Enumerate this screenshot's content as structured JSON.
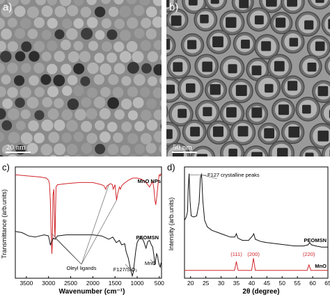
{
  "panels": {
    "a": {
      "letter": "a)",
      "scale_label": "20 nm"
    },
    "b": {
      "letter": "b)",
      "scale_label": "50 nm"
    }
  },
  "chart_data": [
    {
      "id": "c",
      "type": "line",
      "panel_letter": "c)",
      "xlabel": "Wavenumber (cm⁻¹)",
      "ylabel": "Transmittance (arb.units)",
      "x_ticks": [
        3500,
        3000,
        2500,
        2000,
        1500,
        1000,
        500
      ],
      "xlim": [
        3750,
        450
      ],
      "x_reversed": true,
      "annotations": [
        "Oleyl ligands",
        "F127/SiO₂",
        "MnO"
      ],
      "series": [
        {
          "name": "MnO NPs",
          "color": "#d0262b",
          "x": [
            3750,
            3500,
            3200,
            3050,
            3000,
            2980,
            2960,
            2940,
            2925,
            2915,
            2900,
            2880,
            2870,
            2860,
            2853,
            2845,
            2830,
            2800,
            2600,
            2300,
            2000,
            1800,
            1750,
            1711,
            1680,
            1640,
            1600,
            1560,
            1540,
            1500,
            1465,
            1440,
            1400,
            1377,
            1350,
            1300,
            1200,
            1100,
            1000,
            900,
            800,
            720,
            680,
            650,
            620,
            600,
            580,
            560,
            540,
            520,
            500,
            480,
            460
          ],
          "y": [
            0.93,
            0.92,
            0.91,
            0.9,
            0.88,
            0.85,
            0.7,
            0.4,
            0.22,
            0.3,
            0.75,
            0.8,
            0.6,
            0.42,
            0.36,
            0.55,
            0.82,
            0.84,
            0.85,
            0.86,
            0.86,
            0.84,
            0.83,
            0.8,
            0.83,
            0.84,
            0.85,
            0.84,
            0.8,
            0.84,
            0.7,
            0.76,
            0.82,
            0.8,
            0.83,
            0.85,
            0.88,
            0.9,
            0.9,
            0.89,
            0.86,
            0.82,
            0.85,
            0.87,
            0.8,
            0.7,
            0.66,
            0.72,
            0.8,
            0.88,
            0.93,
            0.92,
            0.94
          ]
        },
        {
          "name": "PEOMSN",
          "color": "#111111",
          "x": [
            3750,
            3600,
            3450,
            3300,
            3100,
            3000,
            2960,
            2925,
            2890,
            2850,
            2800,
            2600,
            2400,
            2200,
            2000,
            1800,
            1640,
            1550,
            1470,
            1400,
            1350,
            1280,
            1250,
            1200,
            1150,
            1110,
            1090,
            1060,
            1030,
            1000,
            960,
            900,
            850,
            800,
            780,
            760,
            720,
            700,
            680,
            650,
            620,
            600,
            580,
            560,
            540,
            520,
            500,
            480,
            460
          ],
          "y": [
            0.42,
            0.41,
            0.38,
            0.37,
            0.39,
            0.38,
            0.3,
            0.33,
            0.36,
            0.35,
            0.38,
            0.39,
            0.39,
            0.39,
            0.39,
            0.38,
            0.35,
            0.37,
            0.32,
            0.34,
            0.3,
            0.31,
            0.24,
            0.18,
            0.08,
            0.02,
            0.05,
            0.15,
            0.25,
            0.32,
            0.35,
            0.37,
            0.33,
            0.27,
            0.3,
            0.33,
            0.34,
            0.32,
            0.3,
            0.28,
            0.2,
            0.12,
            0.17,
            0.22,
            0.2,
            0.15,
            0.12,
            0.1,
            0.14
          ]
        }
      ]
    },
    {
      "id": "d",
      "type": "line",
      "panel_letter": "d)",
      "xlabel": "2θ (degree)",
      "ylabel": "Intensity (arb.units)",
      "x_ticks": [
        20,
        25,
        30,
        35,
        40,
        45,
        50,
        55,
        60,
        65
      ],
      "xlim": [
        18,
        65
      ],
      "annotations": [
        "F127 crystalline peaks"
      ],
      "peak_labels": [
        {
          "label": "(111)",
          "x": 35.0
        },
        {
          "label": "(200)",
          "x": 40.6
        },
        {
          "label": "(220)",
          "x": 58.8
        }
      ],
      "series": [
        {
          "name": "PEOMSN",
          "color": "#111111",
          "x": [
            18,
            18.6,
            19.0,
            19.2,
            19.5,
            19.8,
            20.2,
            21,
            22,
            22.8,
            23.2,
            23.6,
            24.0,
            24.6,
            25.5,
            27,
            29,
            31,
            33,
            34.5,
            35.0,
            35.5,
            37,
            39,
            40.3,
            40.7,
            41.2,
            43,
            45,
            48,
            51,
            54,
            57,
            58.5,
            59.0,
            59.6,
            61,
            63,
            65
          ],
          "y": [
            0.52,
            0.55,
            0.6,
            0.8,
            0.94,
            0.7,
            0.56,
            0.55,
            0.56,
            0.68,
            0.9,
            0.94,
            0.7,
            0.52,
            0.46,
            0.43,
            0.41,
            0.39,
            0.37,
            0.37,
            0.4,
            0.36,
            0.34,
            0.34,
            0.38,
            0.4,
            0.35,
            0.33,
            0.32,
            0.31,
            0.3,
            0.29,
            0.29,
            0.3,
            0.32,
            0.3,
            0.29,
            0.28,
            0.28
          ]
        },
        {
          "name": "MnO",
          "color": "#d0262b",
          "x": [
            18,
            34.4,
            35.0,
            35.6,
            40.0,
            40.6,
            41.2,
            58.2,
            58.8,
            59.4,
            65
          ],
          "y": [
            0.07,
            0.07,
            0.15,
            0.07,
            0.07,
            0.18,
            0.07,
            0.07,
            0.12,
            0.07,
            0.07
          ]
        }
      ]
    }
  ]
}
